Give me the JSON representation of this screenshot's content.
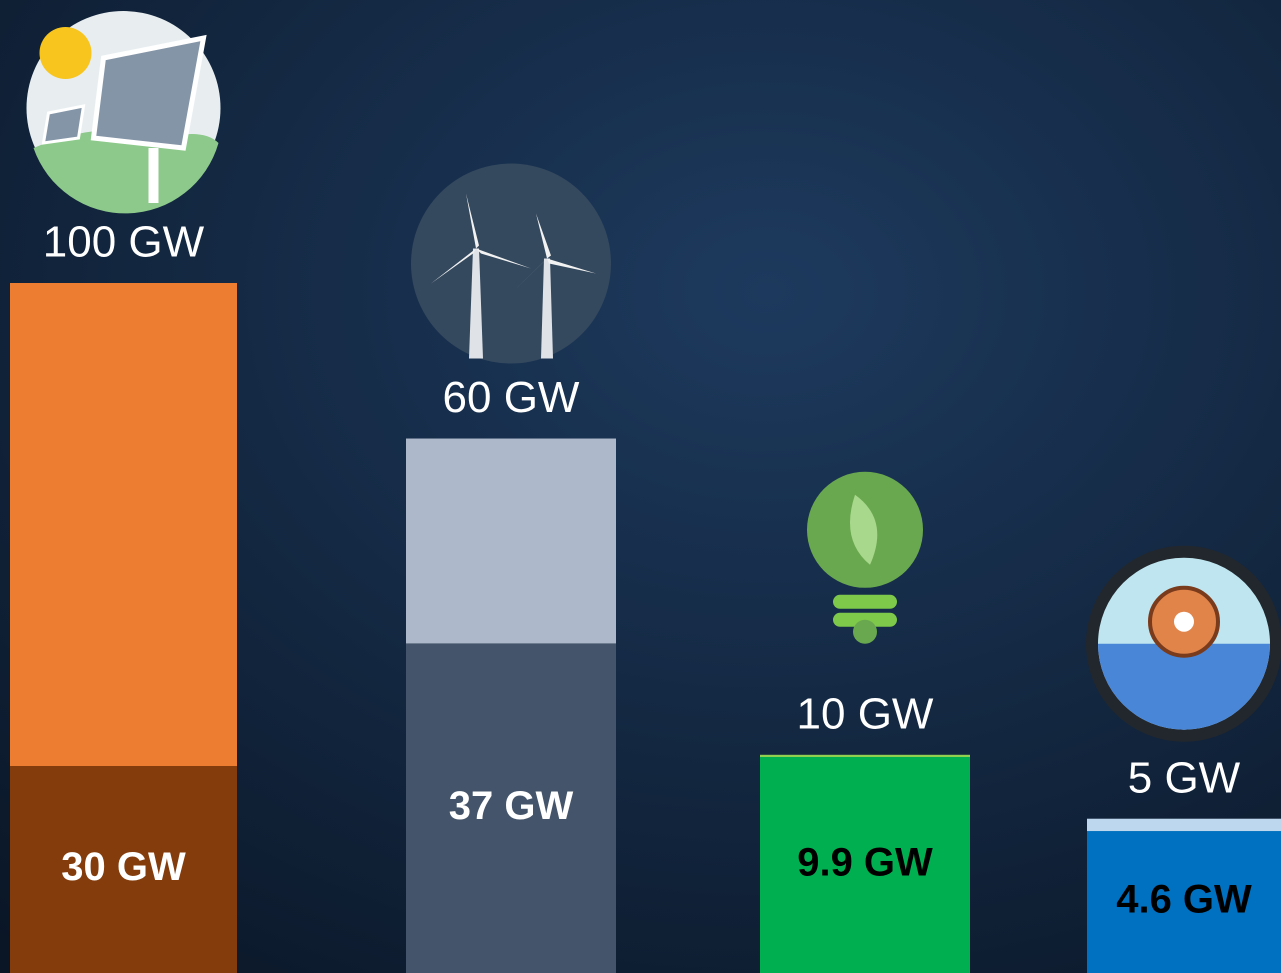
{
  "chart_data": {
    "type": "bar",
    "series": [
      {
        "values": [
          100,
          60,
          10,
          5
        ],
        "value_labels": [
          "100 GW",
          "60 GW",
          "10 GW",
          "5 GW"
        ],
        "colors": [
          "#ed7d31",
          "#adb9ca",
          "#92d050",
          "#bdd7ee"
        ],
        "label_color": "#ffffff"
      },
      {
        "values": [
          30,
          37,
          9.9,
          4.6
        ],
        "value_labels": [
          "30 GW",
          "37 GW",
          "9.9 GW",
          "4.6 GW"
        ],
        "colors": [
          "#843c0c",
          "#44546a",
          "#00b050",
          "#0070c0"
        ],
        "label_colors": [
          "#ffffff",
          "#ffffff",
          "#000000",
          "#000000"
        ]
      }
    ]
  }
}
